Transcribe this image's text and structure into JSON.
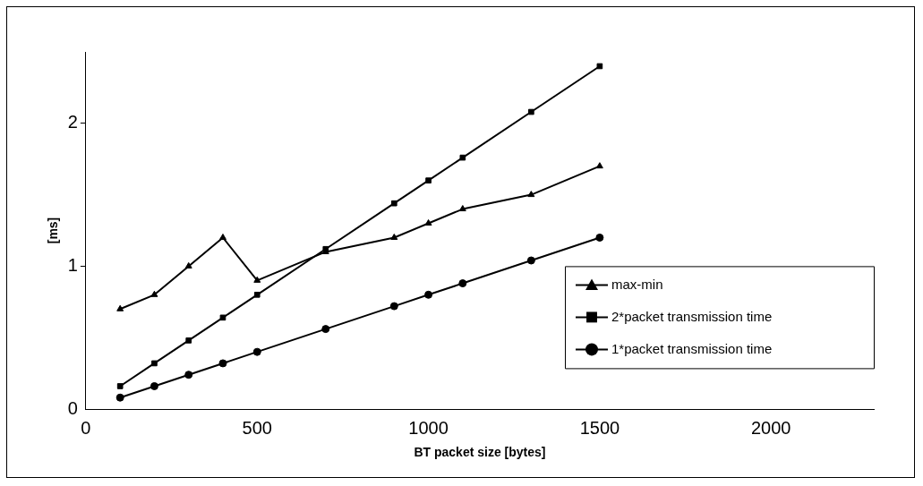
{
  "chart_data": {
    "type": "line",
    "xlabel": "BT packet size [bytes]",
    "ylabel": "[ms]",
    "x": [
      100,
      200,
      300,
      400,
      500,
      700,
      900,
      1000,
      1100,
      1300,
      1500
    ],
    "xlim": [
      0,
      2300
    ],
    "xticks": [
      0,
      500,
      1000,
      1500,
      2000
    ],
    "ylim": [
      0,
      2.5
    ],
    "yticks": [
      0,
      1,
      2
    ],
    "grid": false,
    "legend": "right",
    "line_style": "solid",
    "series": [
      {
        "name": "max-min",
        "color": "#000000",
        "marker": "triangle",
        "values": [
          0.7,
          0.8,
          1.0,
          1.2,
          0.9,
          1.1,
          1.2,
          1.3,
          1.4,
          1.5,
          1.7
        ]
      },
      {
        "name": "2*packet transmission time",
        "color": "#000000",
        "marker": "square",
        "values": [
          0.16,
          0.32,
          0.48,
          0.64,
          0.8,
          1.12,
          1.44,
          1.6,
          1.76,
          2.08,
          2.4
        ]
      },
      {
        "name": "1*packet transmission time",
        "color": "#000000",
        "marker": "circle",
        "values": [
          0.08,
          0.16,
          0.24,
          0.32,
          0.4,
          0.56,
          0.72,
          0.8,
          0.88,
          1.04,
          1.2
        ]
      }
    ]
  }
}
